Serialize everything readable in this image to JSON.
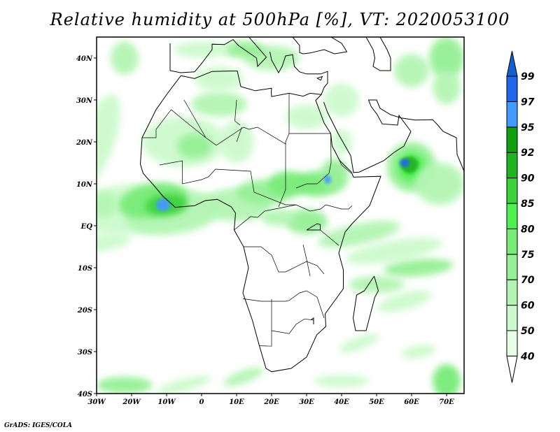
{
  "title": "Relative humidity at 500hPa [%], VT: 2020053100",
  "credit": "GrADS: IGES/COLA",
  "map": {
    "lon_range": [
      -30,
      75
    ],
    "lat_range": [
      -40,
      45
    ],
    "x_ticks": [
      {
        "lon": -30,
        "label": "30W"
      },
      {
        "lon": -20,
        "label": "20W"
      },
      {
        "lon": -10,
        "label": "10W"
      },
      {
        "lon": 0,
        "label": "0"
      },
      {
        "lon": 10,
        "label": "10E"
      },
      {
        "lon": 20,
        "label": "20E"
      },
      {
        "lon": 30,
        "label": "30E"
      },
      {
        "lon": 40,
        "label": "40E"
      },
      {
        "lon": 50,
        "label": "50E"
      },
      {
        "lon": 60,
        "label": "60E"
      },
      {
        "lon": 70,
        "label": "70E"
      }
    ],
    "y_ticks": [
      {
        "lat": 40,
        "label": "40N"
      },
      {
        "lat": 30,
        "label": "30N"
      },
      {
        "lat": 20,
        "label": "20N"
      },
      {
        "lat": 10,
        "label": "10N"
      },
      {
        "lat": 0,
        "label": "EQ"
      },
      {
        "lat": -10,
        "label": "10S"
      },
      {
        "lat": -20,
        "label": "20S"
      },
      {
        "lat": -30,
        "label": "30S"
      },
      {
        "lat": -40,
        "label": "40S"
      }
    ]
  },
  "colorbar": {
    "levels": [
      "40",
      "50",
      "60",
      "70",
      "75",
      "80",
      "85",
      "90",
      "92",
      "95",
      "97",
      "99"
    ],
    "colors": [
      "#e6ffe6",
      "#cdfacd",
      "#b4f5b4",
      "#96f096",
      "#78eb78",
      "#50f050",
      "#3cd23c",
      "#20b420",
      "#10a010",
      "#4499ff",
      "#2266ee",
      "#1060d0"
    ],
    "under_color": "#ffffff"
  }
}
